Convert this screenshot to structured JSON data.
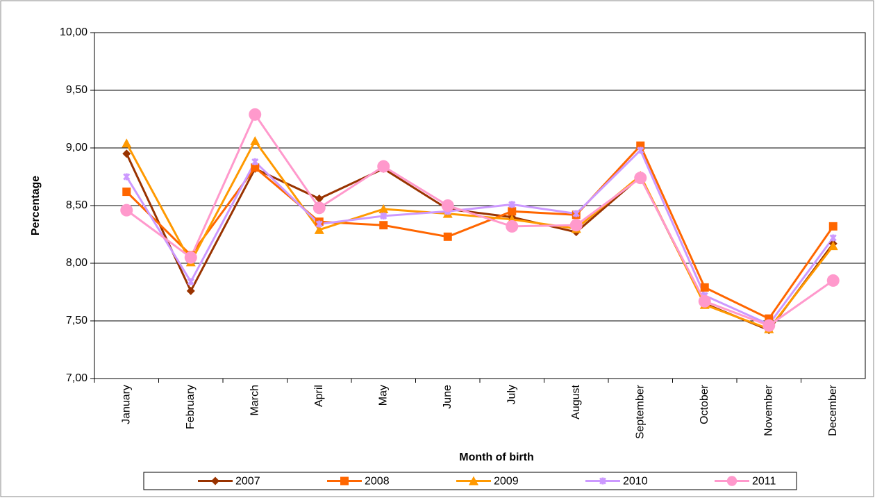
{
  "chart_data": {
    "type": "line",
    "x_label": "Month of birth",
    "y_label": "Percentage",
    "categories": [
      "January",
      "February",
      "March",
      "April",
      "May",
      "June",
      "July",
      "August",
      "September",
      "October",
      "November",
      "December"
    ],
    "ylim": [
      7,
      10
    ],
    "yticks": [
      {
        "value": 7,
        "label": "7,00"
      },
      {
        "value": 7.5,
        "label": "7,50"
      },
      {
        "value": 8,
        "label": "8,00"
      },
      {
        "value": 8.5,
        "label": "8,50"
      },
      {
        "value": 9,
        "label": "9,00"
      },
      {
        "value": 9.5,
        "label": "9,50"
      },
      {
        "value": 10,
        "label": "10,00"
      }
    ],
    "grid": true,
    "legend": "bottom",
    "series": [
      {
        "name": "2007",
        "color": "#993300",
        "marker": "diamond",
        "values": [
          8.95,
          7.76,
          8.82,
          8.56,
          8.82,
          8.47,
          8.4,
          8.27,
          8.75,
          7.65,
          7.42,
          8.17
        ]
      },
      {
        "name": "2008",
        "color": "#FF6600",
        "marker": "square",
        "values": [
          8.62,
          8.07,
          8.83,
          8.36,
          8.33,
          8.23,
          8.45,
          8.42,
          9.02,
          7.79,
          7.52,
          8.32
        ]
      },
      {
        "name": "2009",
        "color": "#FF9900",
        "marker": "triangle",
        "values": [
          9.04,
          8.01,
          9.06,
          8.29,
          8.47,
          8.43,
          8.38,
          8.3,
          8.76,
          7.64,
          7.43,
          8.15
        ]
      },
      {
        "name": "2010",
        "color": "#CC99FF",
        "marker": "star",
        "values": [
          8.75,
          7.84,
          8.88,
          8.34,
          8.41,
          8.45,
          8.51,
          8.43,
          8.98,
          7.72,
          7.47,
          8.22
        ]
      },
      {
        "name": "2011",
        "color": "#FF99CC",
        "marker": "circle",
        "values": [
          8.46,
          8.05,
          9.29,
          8.48,
          8.84,
          8.5,
          8.32,
          8.33,
          8.74,
          7.67,
          7.46,
          7.85
        ]
      }
    ]
  }
}
